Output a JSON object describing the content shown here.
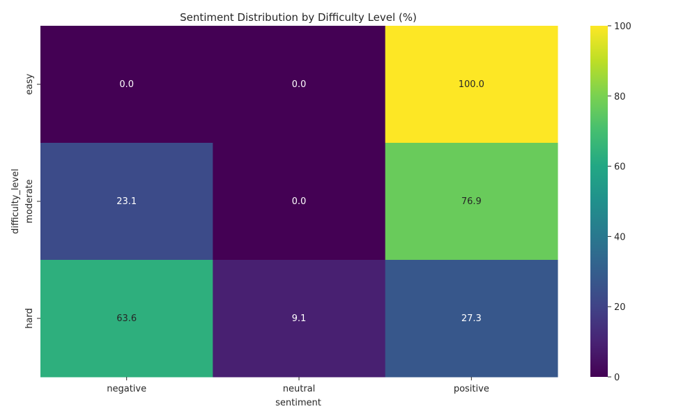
{
  "chart_data": {
    "type": "heatmap",
    "title": "Sentiment Distribution by Difficulty Level (%)",
    "xlabel": "sentiment",
    "ylabel": "difficulty_level",
    "x_categories": [
      "negative",
      "neutral",
      "positive"
    ],
    "y_categories": [
      "easy",
      "moderate",
      "hard"
    ],
    "values": [
      [
        0.0,
        0.0,
        100.0
      ],
      [
        23.1,
        0.0,
        76.9
      ],
      [
        63.6,
        9.1,
        27.3
      ]
    ],
    "annotations": [
      [
        "0.0",
        "0.0",
        "100.0"
      ],
      [
        "23.1",
        "0.0",
        "76.9"
      ],
      [
        "63.6",
        "9.1",
        "27.3"
      ]
    ],
    "colormap": "viridis",
    "vmin": 0,
    "vmax": 100,
    "colorbar_ticks": [
      "0",
      "20",
      "40",
      "60",
      "80",
      "100"
    ]
  }
}
